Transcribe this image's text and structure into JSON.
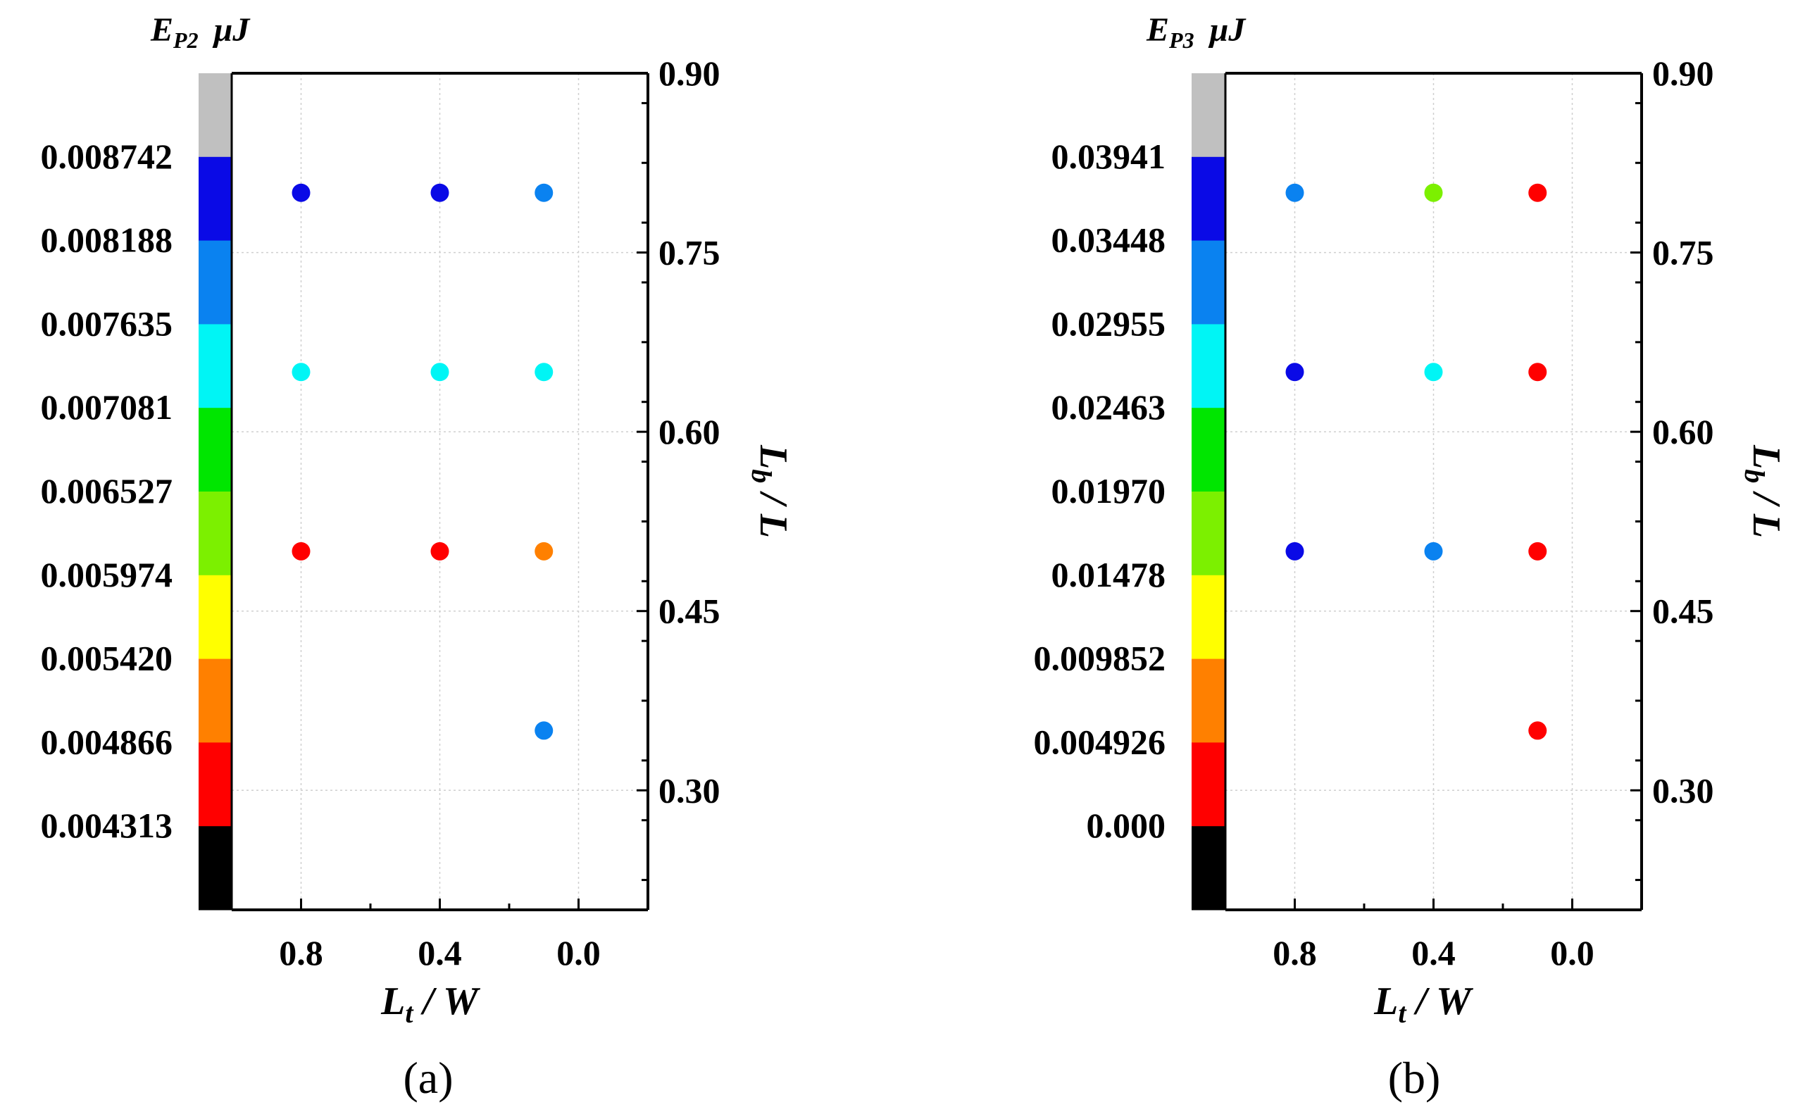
{
  "chart_data": [
    {
      "type": "scatter",
      "panel_label": "(a)",
      "colorbar": {
        "title_base": "E",
        "title_sub": "P2",
        "title_unit": "μJ",
        "labels": [
          "0.008742",
          "0.008188",
          "0.007635",
          "0.007081",
          "0.006527",
          "0.005974",
          "0.005420",
          "0.004866",
          "0.004313"
        ],
        "colors": [
          "#c0c0c0",
          "#0a0ae6",
          "#0a82f0",
          "#00f5f5",
          "#00e600",
          "#7cf000",
          "#ffff00",
          "#ff8000",
          "#ff0000",
          "#000000"
        ]
      },
      "xlabel_base": "L",
      "xlabel_sub": "t",
      "xlabel_rest": " / W",
      "ylabel_base": "L",
      "ylabel_sub": "b",
      "ylabel_rest": " / L",
      "xlim": [
        1.0,
        -0.2
      ],
      "ylim": [
        0.2,
        0.9
      ],
      "x_ticks": [
        "0.8",
        "0.4",
        "0.0"
      ],
      "y_ticks": [
        "0.90",
        "0.75",
        "0.60",
        "0.45",
        "0.30"
      ],
      "grid": true,
      "points": [
        {
          "x": 0.8,
          "y": 0.8,
          "color": "#0a0ae6"
        },
        {
          "x": 0.4,
          "y": 0.8,
          "color": "#0a0ae6"
        },
        {
          "x": 0.1,
          "y": 0.8,
          "color": "#0a82f0"
        },
        {
          "x": 0.8,
          "y": 0.65,
          "color": "#00f5f5"
        },
        {
          "x": 0.4,
          "y": 0.65,
          "color": "#00f5f5"
        },
        {
          "x": 0.1,
          "y": 0.65,
          "color": "#00f5f5"
        },
        {
          "x": 0.8,
          "y": 0.5,
          "color": "#ff0000"
        },
        {
          "x": 0.4,
          "y": 0.5,
          "color": "#ff0000"
        },
        {
          "x": 0.1,
          "y": 0.5,
          "color": "#ff8000"
        },
        {
          "x": 0.1,
          "y": 0.35,
          "color": "#0a82f0"
        }
      ]
    },
    {
      "type": "scatter",
      "panel_label": "(b)",
      "colorbar": {
        "title_base": "E",
        "title_sub": "P3",
        "title_unit": "μJ",
        "labels": [
          "0.03941",
          "0.03448",
          "0.02955",
          "0.02463",
          "0.01970",
          "0.01478",
          "0.009852",
          "0.004926",
          "0.000"
        ],
        "colors": [
          "#c0c0c0",
          "#0a0ae6",
          "#0a82f0",
          "#00f5f5",
          "#00e600",
          "#7cf000",
          "#ffff00",
          "#ff8000",
          "#ff0000",
          "#000000"
        ]
      },
      "xlabel_base": "L",
      "xlabel_sub": "t",
      "xlabel_rest": " / W",
      "ylabel_base": "L",
      "ylabel_sub": "b",
      "ylabel_rest": " / L",
      "xlim": [
        1.0,
        -0.2
      ],
      "ylim": [
        0.2,
        0.9
      ],
      "x_ticks": [
        "0.8",
        "0.4",
        "0.0"
      ],
      "y_ticks": [
        "0.90",
        "0.75",
        "0.60",
        "0.45",
        "0.30"
      ],
      "grid": true,
      "points": [
        {
          "x": 0.8,
          "y": 0.8,
          "color": "#0a82f0"
        },
        {
          "x": 0.4,
          "y": 0.8,
          "color": "#7cf000"
        },
        {
          "x": 0.1,
          "y": 0.8,
          "color": "#ff0000"
        },
        {
          "x": 0.8,
          "y": 0.65,
          "color": "#0a0ae6"
        },
        {
          "x": 0.4,
          "y": 0.65,
          "color": "#00f5f5"
        },
        {
          "x": 0.1,
          "y": 0.65,
          "color": "#ff0000"
        },
        {
          "x": 0.8,
          "y": 0.5,
          "color": "#0a0ae6"
        },
        {
          "x": 0.4,
          "y": 0.5,
          "color": "#0a82f0"
        },
        {
          "x": 0.1,
          "y": 0.5,
          "color": "#ff0000"
        },
        {
          "x": 0.1,
          "y": 0.35,
          "color": "#ff0000"
        }
      ]
    }
  ]
}
